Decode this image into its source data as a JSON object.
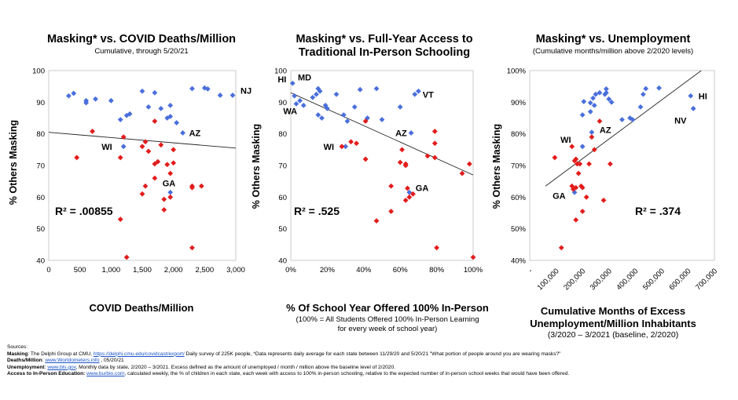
{
  "charts": [
    {
      "title": "Masking* vs. COVID Deaths/Million",
      "subtitle": "Cumulative, through 5/20/21",
      "ylabel": "% Others Masking",
      "xlabel": "COVID Deaths/Million",
      "xsub": "",
      "r2": "R² = .00855",
      "xticks": [
        "0",
        "500",
        "1,000",
        "1,500",
        "2,000",
        "2,500",
        "3,000"
      ],
      "yticks": [
        "100",
        "90",
        "80",
        "70",
        "60",
        "50",
        "40"
      ]
    },
    {
      "title": "Masking* vs. Full-Year Access to Traditional In-Person Schooling",
      "subtitle": "",
      "ylabel": "% Others Masking",
      "xlabel": "% Of School Year Offered 100% In-Person",
      "xsub": "(100% = All Students Offered 100% In-Person Learning for every week of school year)",
      "r2": "R² = .525",
      "xticks": [
        "0%",
        "20%",
        "40%",
        "60%",
        "80%",
        "100%"
      ],
      "yticks": [
        "100",
        "90",
        "80",
        "70",
        "60",
        "50",
        "40"
      ]
    },
    {
      "title": "Masking* vs. Unemployment",
      "subtitle": "(Cumulative months/million above 2/2020 levels)",
      "ylabel": "% Others Masking",
      "xlabel": "Cumulative Months of Excess Unemployment/Million Inhabitants",
      "xsub": "(3/2020 – 3/2021 (baseline, 2/2020)",
      "r2": "R² = .374",
      "xticks": [
        "-",
        "100,000",
        "200,000",
        "300,000",
        "400,000",
        "500,000",
        "600,000",
        "700,000"
      ],
      "yticks": [
        "100%",
        "90%",
        "80%",
        "70%",
        "60%",
        "50%",
        "40%"
      ]
    }
  ],
  "chart_data": [
    {
      "type": "scatter",
      "title": "Masking* vs. COVID Deaths/Million",
      "xlabel": "COVID Deaths/Million",
      "ylabel": "% Others Masking",
      "xlim": [
        0,
        3000
      ],
      "ylim": [
        40,
        100
      ],
      "series": [
        {
          "color": "#4a6fdc",
          "marker": "diamond",
          "points": [
            [
              320,
              92
            ],
            [
              400,
              92.8
            ],
            [
              600,
              90.5
            ],
            [
              600,
              89.8
            ],
            [
              750,
              91
            ],
            [
              1000,
              90.5
            ],
            [
              1150,
              84.5
            ],
            [
              1250,
              85.8
            ],
            [
              1300,
              86.3
            ],
            [
              1500,
              93.5
            ],
            [
              1600,
              88.5
            ],
            [
              1700,
              93
            ],
            [
              1800,
              88
            ],
            [
              1900,
              85
            ],
            [
              1950,
              89
            ],
            [
              1950,
              85.5
            ],
            [
              2050,
              83.5
            ],
            [
              2300,
              94.3
            ],
            [
              2500,
              94.5
            ],
            [
              2550,
              94.2
            ],
            [
              2750,
              92.2
            ],
            [
              2950,
              92.2
            ],
            [
              1200,
              76
            ],
            [
              2150,
              80.3
            ],
            [
              1950,
              61.5
            ]
          ]
        },
        {
          "color": "#e21c1c",
          "marker": "diamond",
          "points": [
            [
              450,
              72.5
            ],
            [
              700,
              80.8
            ],
            [
              1150,
              72.5
            ],
            [
              1200,
              79
            ],
            [
              1150,
              53
            ],
            [
              1250,
              41
            ],
            [
              1500,
              76
            ],
            [
              1550,
              77.5
            ],
            [
              1600,
              74.5
            ],
            [
              1700,
              84
            ],
            [
              1700,
              70.5
            ],
            [
              1750,
              71.2
            ],
            [
              1800,
              76.5
            ],
            [
              1850,
              59.3
            ],
            [
              1900,
              70.3
            ],
            [
              1950,
              67.5
            ],
            [
              1950,
              60
            ],
            [
              2000,
              75
            ],
            [
              2000,
              70.8
            ],
            [
              1500,
              61
            ],
            [
              1550,
              63.5
            ],
            [
              1700,
              66
            ],
            [
              1850,
              56
            ],
            [
              2300,
              63.5
            ],
            [
              2300,
              63
            ],
            [
              2450,
              63.5
            ],
            [
              2300,
              44
            ]
          ]
        }
      ],
      "trendline": [
        [
          0,
          80.5
        ],
        [
          3000,
          75.5
        ]
      ],
      "r2": 0.00855,
      "labels": [
        {
          "text": "NJ",
          "x": 2950,
          "y": 92.2
        },
        {
          "text": "AZ",
          "x": 2150,
          "y": 80.3
        },
        {
          "text": "WI",
          "x": 1200,
          "y": 76
        },
        {
          "text": "GA",
          "x": 1950,
          "y": 61.5
        }
      ]
    },
    {
      "type": "scatter",
      "title": "Masking* vs. Full-Year Access to Traditional In-Person Schooling",
      "xlabel": "% Of School Year Offered 100% In-Person",
      "ylabel": "% Others Masking",
      "xlim": [
        0,
        100
      ],
      "ylim": [
        40,
        100
      ],
      "series": [
        {
          "color": "#4a6fdc",
          "marker": "diamond",
          "points": [
            [
              1,
              96
            ],
            [
              2,
              92
            ],
            [
              3,
              89.5
            ],
            [
              5,
              90.5
            ],
            [
              7,
              89
            ],
            [
              12,
              91.5
            ],
            [
              14,
              92.5
            ],
            [
              15,
              94.3
            ],
            [
              15,
              86
            ],
            [
              16,
              93.5
            ],
            [
              17,
              85
            ],
            [
              19,
              89
            ],
            [
              20,
              88
            ],
            [
              25,
              92.5
            ],
            [
              29,
              86
            ],
            [
              31,
              84
            ],
            [
              35,
              88.5
            ],
            [
              38,
              94
            ],
            [
              42,
              85
            ],
            [
              47,
              94.3
            ],
            [
              50,
              84.5
            ],
            [
              60,
              88.5
            ],
            [
              68,
              92.5
            ],
            [
              70,
              93.5
            ],
            [
              66,
              80.3
            ],
            [
              30,
              76
            ],
            [
              65,
              61.5
            ]
          ]
        },
        {
          "color": "#e21c1c",
          "marker": "diamond",
          "points": [
            [
              28,
              76
            ],
            [
              33,
              77.5
            ],
            [
              36,
              77
            ],
            [
              41,
              84
            ],
            [
              41,
              72
            ],
            [
              47,
              52.5
            ],
            [
              55,
              63.5
            ],
            [
              55,
              55.5
            ],
            [
              60,
              71
            ],
            [
              61,
              75
            ],
            [
              63,
              70.5
            ],
            [
              63,
              70
            ],
            [
              63,
              59
            ],
            [
              64,
              62.8
            ],
            [
              65,
              60
            ],
            [
              67,
              61
            ],
            [
              75,
              73
            ],
            [
              79,
              80.8
            ],
            [
              79,
              77
            ],
            [
              79,
              72.5
            ],
            [
              80,
              44
            ],
            [
              94,
              67.5
            ],
            [
              98,
              70.5
            ],
            [
              100,
              41
            ]
          ]
        }
      ],
      "trendline": [
        [
          0,
          93
        ],
        [
          100,
          67
        ]
      ],
      "r2": 0.525,
      "labels": [
        {
          "text": "HI",
          "x": 1,
          "y": 96
        },
        {
          "text": "MD",
          "x": 3,
          "y": 92
        },
        {
          "text": "WA",
          "x": 1,
          "y": 89.5
        },
        {
          "text": "VT",
          "x": 68,
          "y": 92.5
        },
        {
          "text": "AZ",
          "x": 66,
          "y": 80.3
        },
        {
          "text": "WI",
          "x": 30,
          "y": 76
        },
        {
          "text": "GA",
          "x": 65,
          "y": 61.5
        }
      ]
    },
    {
      "type": "scatter",
      "title": "Masking* vs. Unemployment",
      "xlabel": "Cumulative Months of Excess Unemployment/Million Inhabitants",
      "ylabel": "% Others Masking",
      "xlim": [
        0,
        700000
      ],
      "ylim": [
        40,
        100
      ],
      "series": [
        {
          "color": "#4a6fdc",
          "marker": "diamond",
          "points": [
            [
              200000,
              86
            ],
            [
              205000,
              90.2
            ],
            [
              230000,
              89.8
            ],
            [
              230000,
              87
            ],
            [
              240000,
              91.3
            ],
            [
              245000,
              89
            ],
            [
              250000,
              92.5
            ],
            [
              265000,
              93
            ],
            [
              285000,
              92.5
            ],
            [
              290000,
              94.2
            ],
            [
              290000,
              93
            ],
            [
              300000,
              91
            ],
            [
              310000,
              90
            ],
            [
              350000,
              84.5
            ],
            [
              380000,
              85
            ],
            [
              390000,
              84.5
            ],
            [
              420000,
              88.5
            ],
            [
              430000,
              92.5
            ],
            [
              440000,
              94.3
            ],
            [
              490000,
              94.5
            ],
            [
              610000,
              92
            ],
            [
              620000,
              88
            ],
            [
              235000,
              80.5
            ],
            [
              200000,
              76
            ],
            [
              170000,
              61.5
            ]
          ]
        },
        {
          "color": "#e21c1c",
          "marker": "diamond",
          "points": [
            [
              95000,
              72.5
            ],
            [
              160000,
              76
            ],
            [
              170000,
              71.5
            ],
            [
              175000,
              72
            ],
            [
              180000,
              70.5
            ],
            [
              190000,
              70.5
            ],
            [
              165000,
              62.5
            ],
            [
              175000,
              63
            ],
            [
              195000,
              63.5
            ],
            [
              200000,
              55.5
            ],
            [
              215000,
              60
            ],
            [
              225000,
              70.5
            ],
            [
              235000,
              79
            ],
            [
              245000,
              75
            ],
            [
              265000,
              84
            ],
            [
              280000,
              59
            ],
            [
              200000,
              63
            ],
            [
              120000,
              44
            ],
            [
              305000,
              70.5
            ],
            [
              175000,
              52.8
            ],
            [
              185000,
              67.5
            ],
            [
              160000,
              63.5
            ]
          ]
        }
      ],
      "trendline": [
        [
          60000,
          63.5
        ],
        [
          650000,
          100
        ]
      ],
      "r2": 0.374,
      "labels": [
        {
          "text": "HI",
          "x": 610000,
          "y": 92
        },
        {
          "text": "NV",
          "x": 620000,
          "y": 88
        },
        {
          "text": "AZ",
          "x": 235000,
          "y": 80.5
        },
        {
          "text": "WI",
          "x": 200000,
          "y": 76
        },
        {
          "text": "GA",
          "x": 170000,
          "y": 61.5
        }
      ]
    }
  ],
  "sources": {
    "heading": "Sources:",
    "masking_label": "Masking",
    "masking_pre": ": The Delphi Group at CMU, ",
    "masking_link": "https://delphi.cmu.edu/covidcast/export/",
    "masking_post": " Daily survey of 225K people, *Data represents daily average for each state between 11/29/20 and 5/20/21 \"What portion of people around you are wearing masks?\"",
    "deaths_label": "Deaths/Million",
    "deaths_pre": ": ",
    "deaths_link": "www.Worldometers.info",
    "deaths_post": " , 05/20/21",
    "unemp_label": "Unemployment",
    "unemp_pre": ": ",
    "unemp_link": "www.bls.gov",
    "unemp_post": ", Monthly data by state, 2/2020 – 3/2021. Excess defined as the amount of unemployed / month / million above the baseline level of 2/2020.",
    "access_label": "Access to In-Person Education:",
    "access_pre": " ",
    "access_link": "www.burbio.com",
    "access_post": ", calculated weekly, the % of children in each state, each week with access to 100% in-person schooling, relative to the expected number of in-person school weeks that would have been offered."
  }
}
